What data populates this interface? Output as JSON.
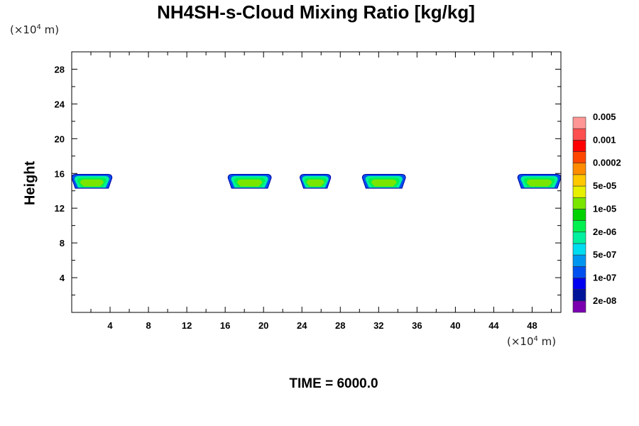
{
  "chart_data": {
    "type": "heatmap",
    "title": "NH4SH-s-Cloud Mixing Ratio [kg/kg]",
    "ylabel": "Height",
    "x_unit": {
      "prefix": "(×10",
      "exp": "4",
      "suffix": " m)"
    },
    "y_unit": {
      "prefix": "(×10",
      "exp": "4",
      "suffix": " m)"
    },
    "xlim": [
      0,
      51
    ],
    "ylim": [
      0,
      30
    ],
    "x_ticks": [
      4,
      8,
      12,
      16,
      20,
      24,
      28,
      32,
      36,
      40,
      44,
      48
    ],
    "y_ticks": [
      4,
      8,
      12,
      16,
      20,
      24,
      28
    ],
    "colorbar": {
      "colors": [
        "#7a00b0",
        "#00149a",
        "#0000f0",
        "#0050f0",
        "#0096f0",
        "#00dcf0",
        "#00f0a0",
        "#00f050",
        "#00d200",
        "#7ae600",
        "#e6f000",
        "#ffc800",
        "#ff8c00",
        "#ff4600",
        "#ff0000",
        "#ff5050",
        "#ff9696"
      ],
      "labels": [
        "2e-08",
        "1e-07",
        "5e-07",
        "2e-06",
        "1e-05",
        "5e-05",
        "0.0002",
        "0.001",
        "0.005"
      ]
    },
    "cloud_layers": [
      {
        "x_range": [
          0,
          4.2
        ],
        "z_range": [
          14.3,
          15.9
        ],
        "peak": "5e-05"
      },
      {
        "x_range": [
          16.3,
          20.8
        ],
        "z_range": [
          14.3,
          15.9
        ],
        "peak": "5e-05"
      },
      {
        "x_range": [
          23.8,
          27.0
        ],
        "z_range": [
          14.3,
          15.9
        ],
        "peak": "5e-05"
      },
      {
        "x_range": [
          30.3,
          34.8
        ],
        "z_range": [
          14.3,
          15.9
        ],
        "peak": "5e-05"
      },
      {
        "x_range": [
          46.5,
          51.0
        ],
        "z_range": [
          14.3,
          15.9
        ],
        "peak": "5e-05"
      }
    ],
    "time_label": "TIME = 6000.0"
  }
}
